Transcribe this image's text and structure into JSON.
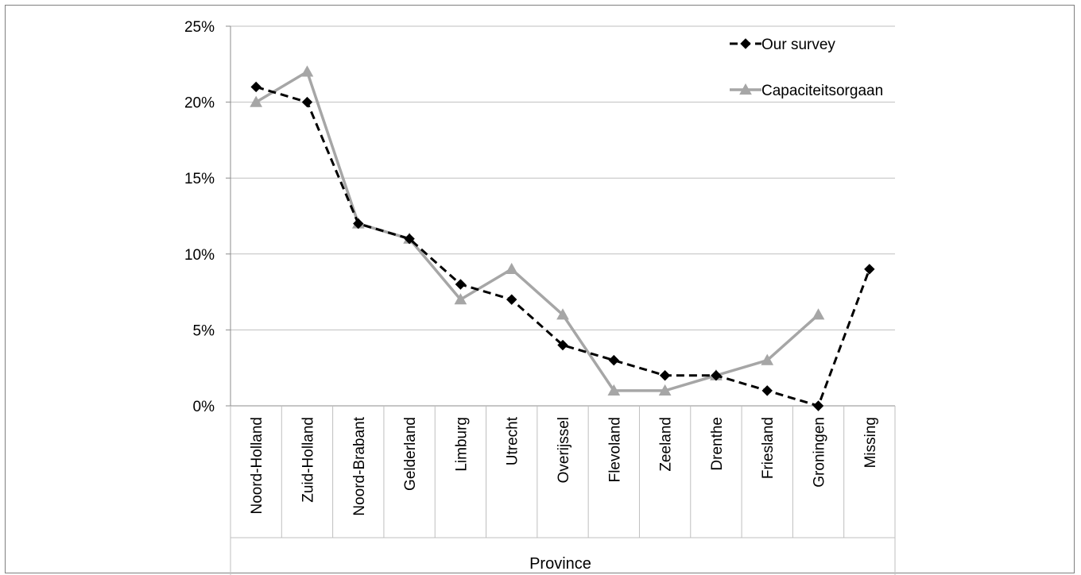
{
  "chart_data": {
    "type": "line",
    "title": "",
    "xlabel": "Province",
    "ylabel": "",
    "ylim": [
      0,
      25
    ],
    "y_tick_labels": [
      "0%",
      "5%",
      "10%",
      "15%",
      "20%",
      "25%"
    ],
    "y_ticks": [
      0,
      5,
      10,
      15,
      20,
      25
    ],
    "grid": true,
    "legend_position": "top-right",
    "categories": [
      "Noord-Holland",
      "Zuid-Holland",
      "Noord-Brabant",
      "Gelderland",
      "Limburg",
      "Utrecht",
      "Overijssel",
      "Flevoland",
      "Zeeland",
      "Drenthe",
      "Friesland",
      "Groningen",
      "Missing"
    ],
    "series": [
      {
        "name": "Our survey",
        "values": [
          21,
          20,
          12,
          11,
          8,
          7,
          4,
          3,
          2,
          2,
          1,
          0,
          9
        ],
        "color": "#000000",
        "style": "dashed",
        "marker": "diamond"
      },
      {
        "name": "Capaciteitsorgaan",
        "values": [
          20,
          22,
          12,
          11,
          7,
          9,
          6,
          1,
          1,
          2,
          3,
          6,
          null
        ],
        "color": "#a6a6a6",
        "style": "solid",
        "marker": "triangle"
      }
    ]
  }
}
